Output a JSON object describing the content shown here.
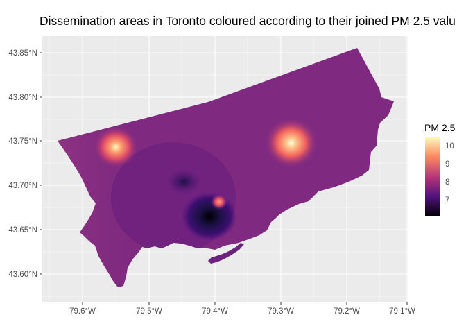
{
  "title": "Dissemination areas in Toronto coloured according to their joined PM 2.5 valu",
  "y_ticks": [
    "43.85°N",
    "43.80°N",
    "43.75°N",
    "43.70°N",
    "43.65°N",
    "43.60°N"
  ],
  "x_ticks": [
    "79.6°W",
    "79.5°W",
    "79.4°W",
    "79.3°W",
    "79.2°W",
    "79.1°W"
  ],
  "legend": {
    "title": "PM 2.5",
    "labels": [
      "10",
      "9",
      "8",
      "7"
    ],
    "colors": [
      "#fcfdbf",
      "#fc8961",
      "#b73779",
      "#51127c",
      "#000004"
    ]
  },
  "colors": {
    "panel_background": "#ebebeb",
    "gridline": "#ffffff",
    "base_fill": "#7f2a80",
    "west_fill": "#8c3284",
    "hotspot": "#fcfdbf",
    "low_spot": "#000004"
  }
}
